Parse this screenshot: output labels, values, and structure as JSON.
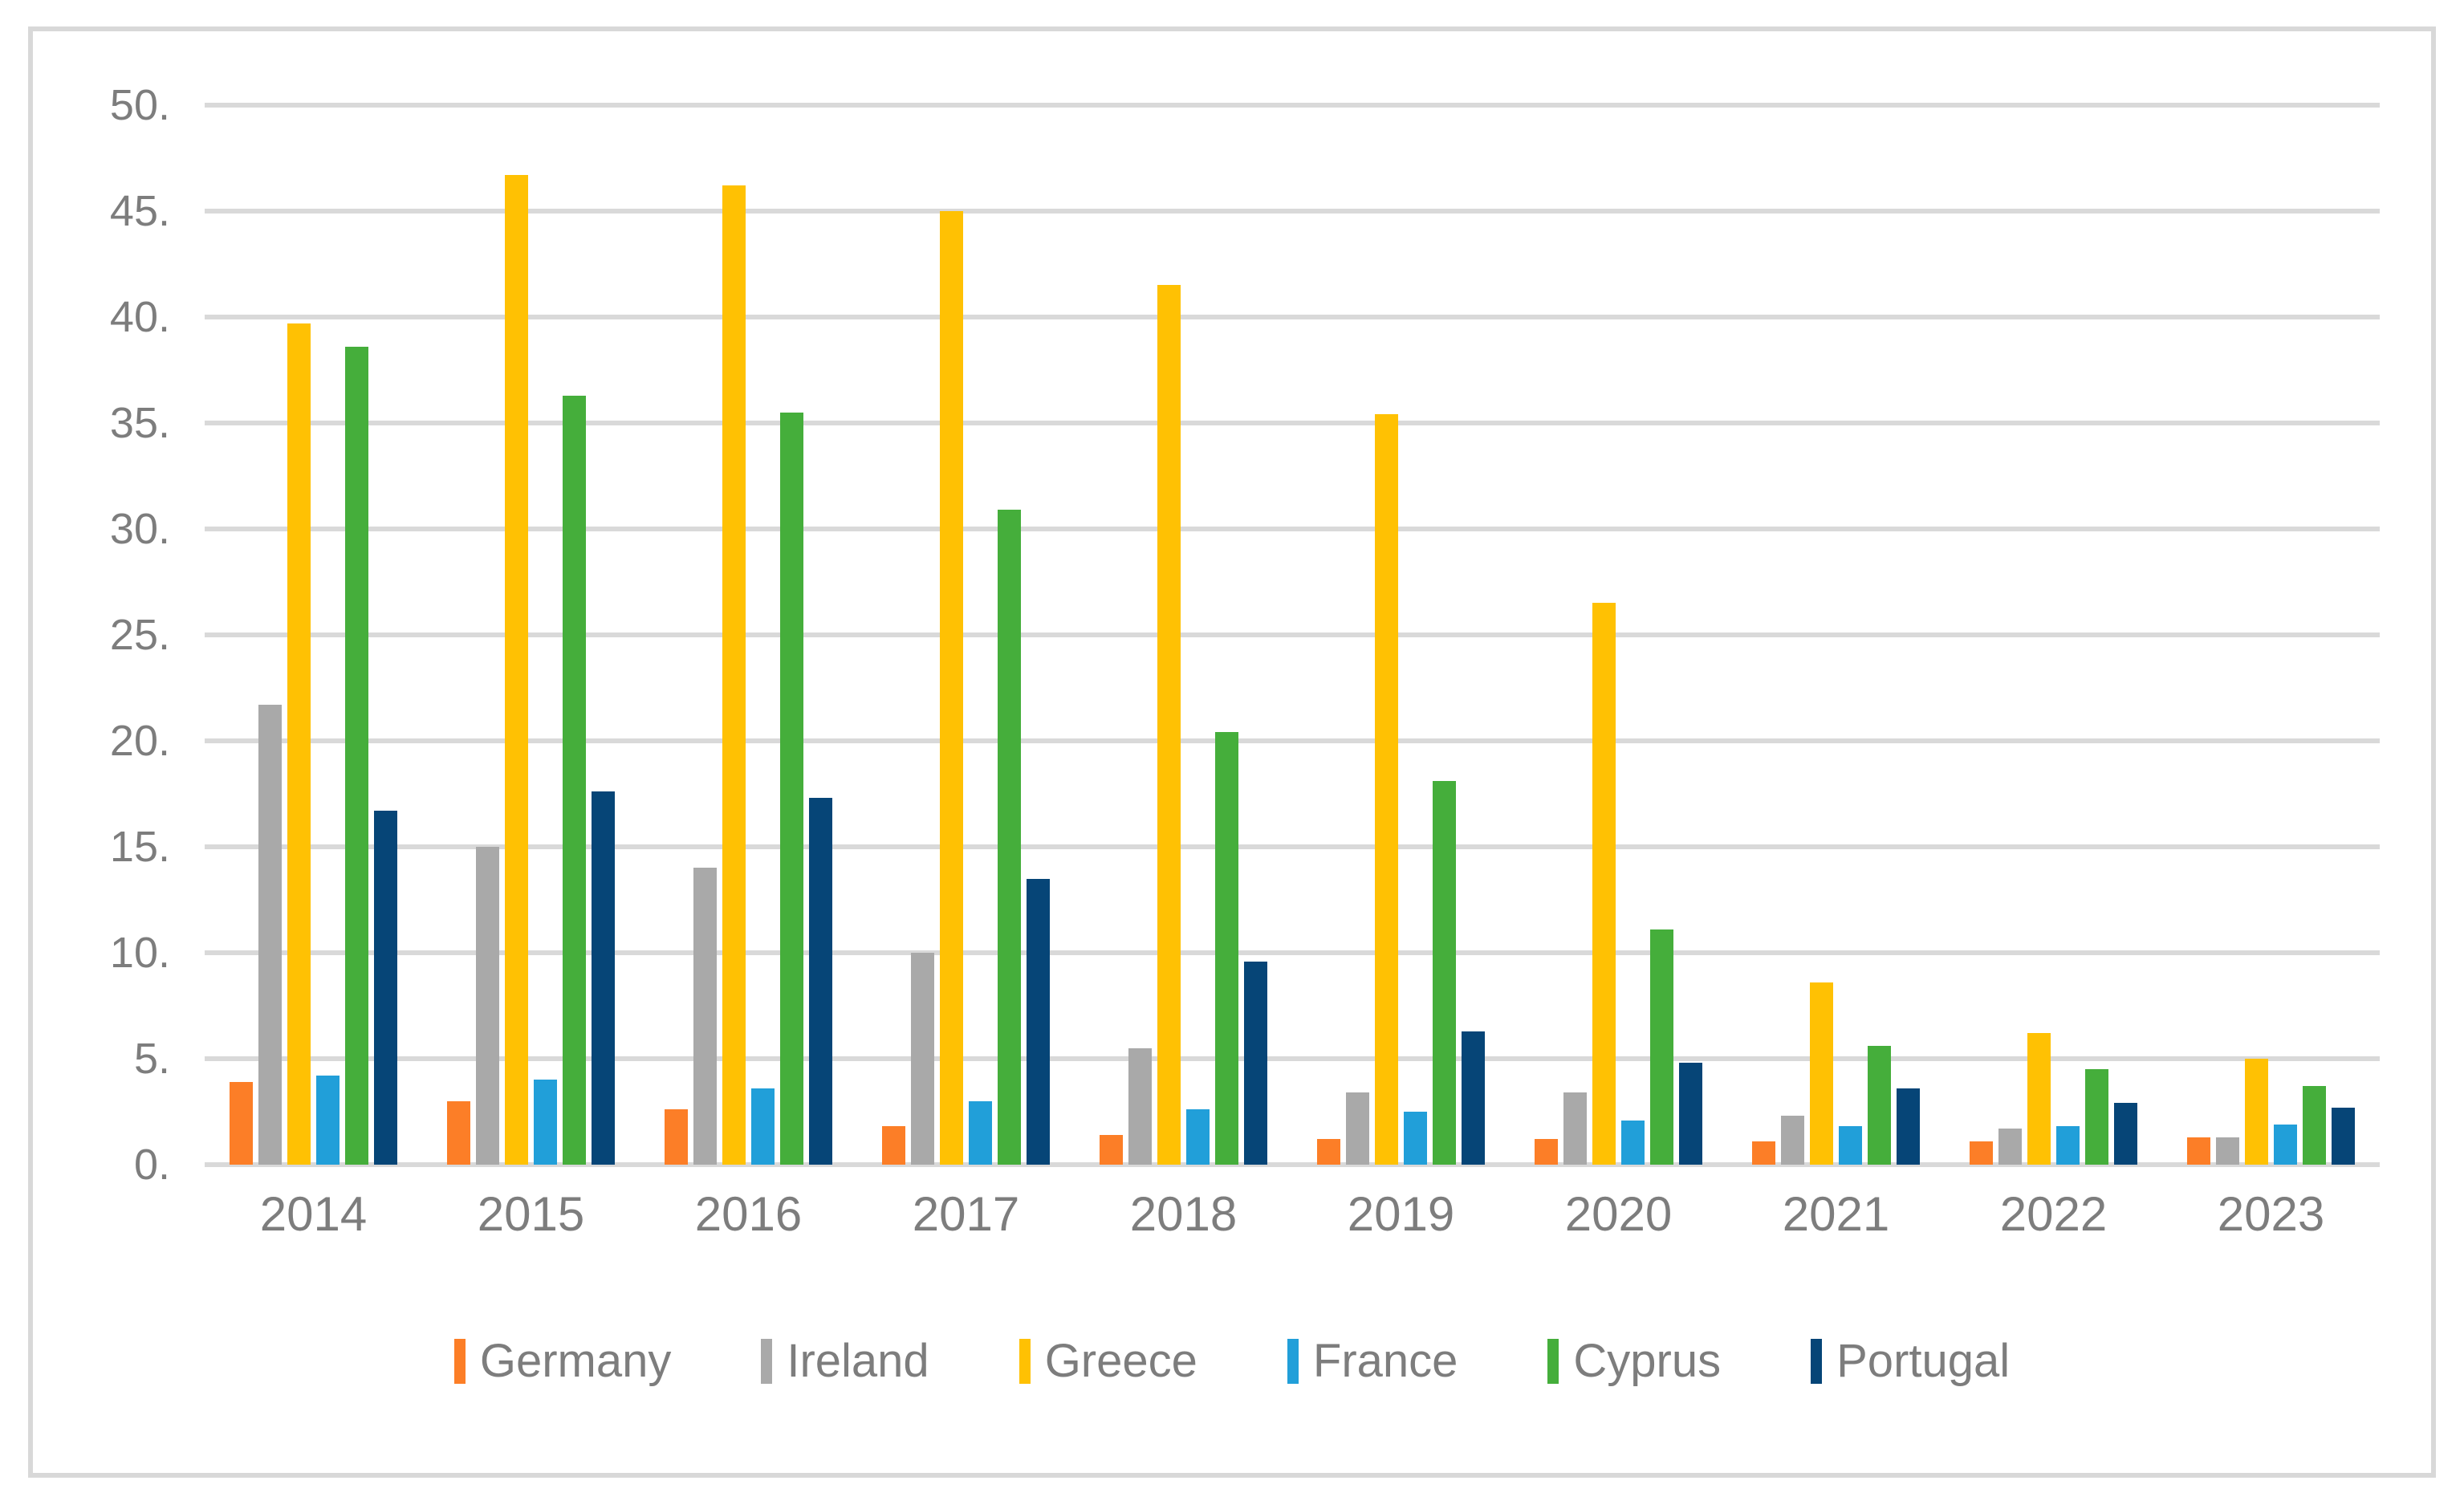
{
  "figure": {
    "background_color": "#FFFFFF",
    "border_color": "#D8D8D8",
    "gridline_color": "#D9D9D9",
    "text_color": "#7D7D7D"
  },
  "chart_data": {
    "type": "bar",
    "title": "",
    "xlabel": "",
    "ylabel": "",
    "grid": true,
    "legend_position": "bottom",
    "categories": [
      "2014",
      "2015",
      "2016",
      "2017",
      "2018",
      "2019",
      "2020",
      "2021",
      "2022",
      "2023"
    ],
    "series": [
      {
        "name": "Germany",
        "color": "#FC7E27",
        "values": [
          3.9,
          3.0,
          2.6,
          1.8,
          1.4,
          1.2,
          1.2,
          1.1,
          1.1,
          1.3
        ]
      },
      {
        "name": "Ireland",
        "color": "#A9A9A9",
        "values": [
          21.7,
          15.0,
          14.0,
          10.0,
          5.5,
          3.4,
          3.4,
          2.3,
          1.7,
          1.3
        ]
      },
      {
        "name": "Greece",
        "color": "#FFC103",
        "values": [
          39.7,
          46.7,
          46.2,
          45.0,
          41.5,
          35.4,
          26.5,
          8.6,
          6.2,
          5.0
        ]
      },
      {
        "name": "France",
        "color": "#219FD9",
        "values": [
          4.2,
          4.0,
          3.6,
          3.0,
          2.6,
          2.5,
          2.1,
          1.8,
          1.8,
          1.9
        ]
      },
      {
        "name": "Cyprus",
        "color": "#45AE3B",
        "values": [
          38.6,
          36.3,
          35.5,
          30.9,
          20.4,
          18.1,
          11.1,
          5.6,
          4.5,
          3.7
        ]
      },
      {
        "name": "Portugal",
        "color": "#064577",
        "values": [
          16.7,
          17.6,
          17.3,
          13.5,
          9.6,
          6.3,
          4.8,
          3.6,
          2.9,
          2.7
        ]
      }
    ],
    "y_axis": {
      "min": 0,
      "max": 50,
      "tick_step": 5,
      "tick_labels": [
        "0.",
        "5.",
        "10.",
        "15.",
        "20.",
        "25.",
        "30.",
        "35.",
        "40.",
        "45.",
        "50."
      ]
    }
  }
}
